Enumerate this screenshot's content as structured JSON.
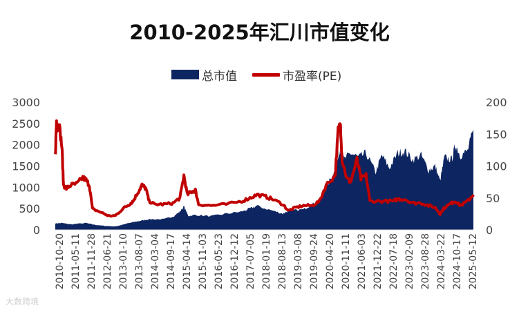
{
  "title": "2010-2025年汇川市值变化",
  "watermark": "大数跨境",
  "chart_data": {
    "type": "line",
    "title": "2010-2025年汇川市值变化",
    "legend_position": "top",
    "grid": false,
    "series": [
      {
        "name": "总市值",
        "kind": "area",
        "axis": "left",
        "color": "#0d2561"
      },
      {
        "name": "市盈率(PE)",
        "kind": "line",
        "axis": "right",
        "color": "#c00000"
      }
    ],
    "y_left": {
      "range": [
        0,
        3000
      ],
      "ticks": [
        "0",
        "500",
        "1000",
        "1500",
        "2000",
        "2500",
        "3000"
      ]
    },
    "y_right": {
      "range": [
        0,
        200
      ],
      "ticks": [
        "0",
        "50",
        "100",
        "150",
        "200"
      ]
    },
    "x_range": [
      "2010-10-20",
      "2025-10-31"
    ],
    "x_tick_labels": [
      "2010-10-20",
      "2011-05-11",
      "2011-11-28",
      "2012-06-21",
      "2013-01-10",
      "2013-08-07",
      "2014-03-04",
      "2014-09-17",
      "2015-04-14",
      "2015-11-03",
      "2016-05-23",
      "2016-12-12",
      "2017-07-05",
      "2018-01-19",
      "2018-08-13",
      "2019-03-08",
      "2019-09-24",
      "2020-04-20",
      "2020-11-11",
      "2021-06-03",
      "2021-12-22",
      "2022-07-18",
      "2023-02-09",
      "2023-08-28",
      "2024-03-22",
      "2024-10-17",
      "2025-05-12"
    ],
    "market_cap": [
      [
        "2010-10-20",
        150
      ],
      [
        "2011-01-15",
        160
      ],
      [
        "2011-05-11",
        130
      ],
      [
        "2011-11-28",
        160
      ],
      [
        "2012-03-15",
        120
      ],
      [
        "2012-06-21",
        100
      ],
      [
        "2012-12-01",
        80
      ],
      [
        "2013-01-10",
        90
      ],
      [
        "2013-05-01",
        140
      ],
      [
        "2013-08-07",
        180
      ],
      [
        "2013-12-01",
        220
      ],
      [
        "2014-03-04",
        250
      ],
      [
        "2014-09-17",
        250
      ],
      [
        "2015-01-20",
        320
      ],
      [
        "2015-04-14",
        430
      ],
      [
        "2015-06-05",
        550
      ],
      [
        "2015-08-01",
        330
      ],
      [
        "2015-11-03",
        350
      ],
      [
        "2016-05-23",
        320
      ],
      [
        "2016-12-12",
        380
      ],
      [
        "2017-07-05",
        430
      ],
      [
        "2017-10-20",
        500
      ],
      [
        "2018-01-19",
        560
      ],
      [
        "2018-08-13",
        450
      ],
      [
        "2018-12-25",
        380
      ],
      [
        "2019-03-08",
        450
      ],
      [
        "2019-09-24",
        480
      ],
      [
        "2020-01-15",
        600
      ],
      [
        "2020-04-20",
        700
      ],
      [
        "2020-07-15",
        1000
      ],
      [
        "2020-11-11",
        1400
      ],
      [
        "2021-01-20",
        1900
      ],
      [
        "2021-03-10",
        1650
      ],
      [
        "2021-06-03",
        1800
      ],
      [
        "2021-09-15",
        1700
      ],
      [
        "2021-12-22",
        1800
      ],
      [
        "2022-04-25",
        1350
      ],
      [
        "2022-07-18",
        1750
      ],
      [
        "2022-10-25",
        1450
      ],
      [
        "2023-02-09",
        1800
      ],
      [
        "2023-05-15",
        1850
      ],
      [
        "2023-08-28",
        1650
      ],
      [
        "2023-12-15",
        1750
      ],
      [
        "2024-03-22",
        1400
      ],
      [
        "2024-06-15",
        1500
      ],
      [
        "2024-08-20",
        1150
      ],
      [
        "2024-10-17",
        1700
      ],
      [
        "2025-01-20",
        1650
      ],
      [
        "2025-03-10",
        2000
      ],
      [
        "2025-05-12",
        1750
      ],
      [
        "2025-08-15",
        1850
      ],
      [
        "2025-10-31",
        2350
      ]
    ],
    "pe": [
      [
        "2010-10-20",
        115
      ],
      [
        "2010-11-05",
        170
      ],
      [
        "2010-11-20",
        160
      ],
      [
        "2010-12-10",
        165
      ],
      [
        "2011-01-15",
        130
      ],
      [
        "2011-02-05",
        70
      ],
      [
        "2011-03-15",
        65
      ],
      [
        "2011-05-11",
        70
      ],
      [
        "2011-08-01",
        72
      ],
      [
        "2011-10-15",
        82
      ],
      [
        "2011-11-28",
        78
      ],
      [
        "2012-01-10",
        70
      ],
      [
        "2012-02-20",
        33
      ],
      [
        "2012-06-21",
        27
      ],
      [
        "2012-09-15",
        22
      ],
      [
        "2012-12-10",
        22
      ],
      [
        "2013-01-10",
        25
      ],
      [
        "2013-04-15",
        35
      ],
      [
        "2013-06-20",
        40
      ],
      [
        "2013-08-07",
        45
      ],
      [
        "2013-10-15",
        60
      ],
      [
        "2013-12-01",
        70
      ],
      [
        "2014-01-20",
        65
      ],
      [
        "2014-03-04",
        45
      ],
      [
        "2014-05-15",
        40
      ],
      [
        "2014-09-17",
        40
      ],
      [
        "2015-01-15",
        42
      ],
      [
        "2015-04-14",
        50
      ],
      [
        "2015-06-05",
        85
      ],
      [
        "2015-07-20",
        55
      ],
      [
        "2015-09-15",
        60
      ],
      [
        "2015-11-03",
        62
      ],
      [
        "2015-12-15",
        40
      ],
      [
        "2016-05-23",
        38
      ],
      [
        "2016-12-12",
        40
      ],
      [
        "2017-07-05",
        45
      ],
      [
        "2017-10-20",
        50
      ],
      [
        "2018-01-19",
        55
      ],
      [
        "2018-05-15",
        52
      ],
      [
        "2018-08-13",
        48
      ],
      [
        "2018-12-25",
        40
      ],
      [
        "2019-03-08",
        30
      ],
      [
        "2019-06-15",
        35
      ],
      [
        "2019-09-24",
        38
      ],
      [
        "2020-01-15",
        38
      ],
      [
        "2020-04-20",
        45
      ],
      [
        "2020-07-15",
        70
      ],
      [
        "2020-11-11",
        85
      ],
      [
        "2020-12-20",
        155
      ],
      [
        "2021-01-20",
        165
      ],
      [
        "2021-02-10",
        110
      ],
      [
        "2021-04-15",
        80
      ],
      [
        "2021-06-03",
        75
      ],
      [
        "2021-08-25",
        110
      ],
      [
        "2021-10-15",
        80
      ],
      [
        "2021-12-22",
        85
      ],
      [
        "2022-02-10",
        45
      ],
      [
        "2022-07-18",
        45
      ],
      [
        "2022-12-15",
        45
      ],
      [
        "2023-02-09",
        48
      ],
      [
        "2023-05-15",
        48
      ],
      [
        "2023-08-28",
        42
      ],
      [
        "2023-12-15",
        42
      ],
      [
        "2024-03-22",
        38
      ],
      [
        "2024-06-15",
        35
      ],
      [
        "2024-08-20",
        25
      ],
      [
        "2024-10-17",
        35
      ],
      [
        "2025-01-20",
        42
      ],
      [
        "2025-03-10",
        45
      ],
      [
        "2025-05-12",
        38
      ],
      [
        "2025-08-15",
        45
      ],
      [
        "2025-10-31",
        55
      ]
    ]
  }
}
